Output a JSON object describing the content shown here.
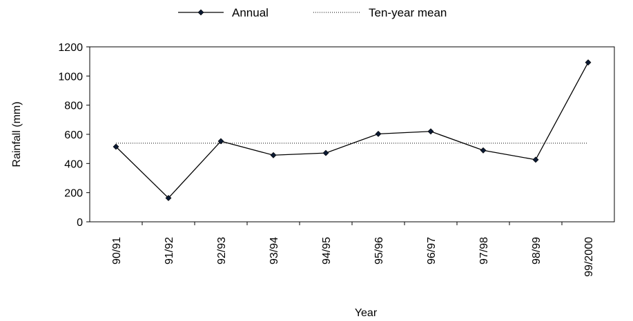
{
  "chart_data": {
    "type": "line",
    "categories": [
      "90/91",
      "91/92",
      "92/93",
      "93/94",
      "94/95",
      "95/96",
      "96/97",
      "97/98",
      "98/99",
      "99/2000"
    ],
    "series": [
      {
        "name": "Annual",
        "values": [
          515,
          163,
          553,
          457,
          472,
          603,
          620,
          490,
          426,
          1093
        ],
        "color": "#000000",
        "marker": "diamond"
      },
      {
        "name": "Ten-year mean",
        "values": [
          539,
          539,
          539,
          539,
          539,
          539,
          539,
          539,
          539,
          539
        ],
        "color": "#000000",
        "style": "dotted"
      }
    ],
    "xlabel": "Year",
    "ylabel": "Rainfall (mm)",
    "ylim": [
      0,
      1200
    ],
    "yticks": [
      0,
      200,
      400,
      600,
      800,
      1000,
      1200
    ],
    "grid": false,
    "legend_position": "top"
  }
}
